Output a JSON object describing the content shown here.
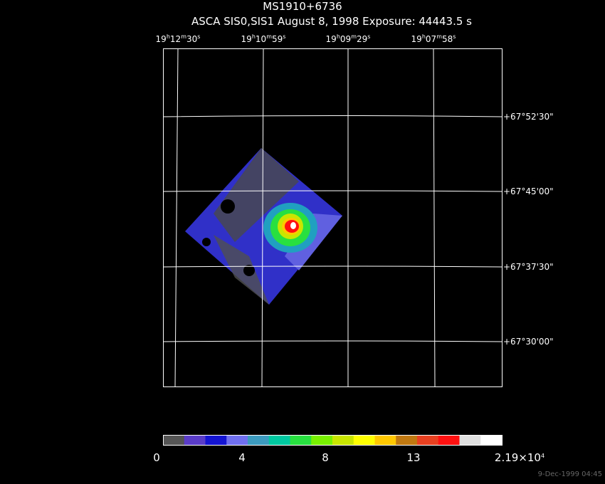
{
  "title": "MS1910+6736",
  "subtitle": "ASCA SIS0,SIS1 August 8, 1998 Exposure: 44443.5 s",
  "ra_labels": [
    [
      "19",
      "h",
      "12",
      "m",
      "30",
      "s"
    ],
    [
      "19",
      "h",
      "10",
      "m",
      "59",
      "s"
    ],
    [
      "19",
      "h",
      "09",
      "m",
      "29",
      "s"
    ],
    [
      "19",
      "h",
      "07",
      "m",
      "58",
      "s"
    ]
  ],
  "dec_labels": [
    "+67°52'30\"",
    "+67°45'00\"",
    "+67°37'30\"",
    "+67°30'00\""
  ],
  "colorbar_labels": [
    [
      "0"
    ],
    [
      "4"
    ],
    [
      "8"
    ],
    [
      "13"
    ],
    [
      "2.19×10",
      "4"
    ]
  ],
  "timestamp": "9-Dec-1999 04:45"
}
